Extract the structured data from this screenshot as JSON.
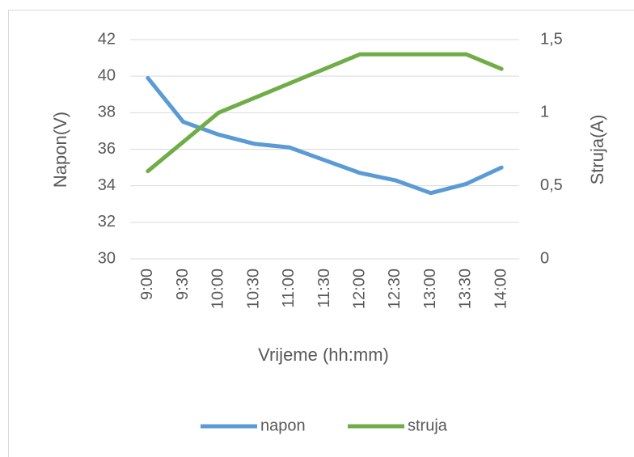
{
  "chart_data": {
    "type": "line",
    "x_label": "Vrijeme (hh:mm)",
    "y_label": "Napon(V)",
    "y2_label": "Struja(A)",
    "categories": [
      "9:00",
      "9:30",
      "10:00",
      "10:30",
      "11:00",
      "11:30",
      "12:00",
      "12:30",
      "13:00",
      "13:30",
      "14:00"
    ],
    "series": [
      {
        "name": "napon",
        "color": "#5b9bd5",
        "values": [
          39.9,
          37.5,
          36.8,
          36.3,
          36.1,
          35.4,
          34.7,
          34.3,
          33.6,
          34.1,
          35.0
        ]
      },
      {
        "name": "struja",
        "color": "#70ad47",
        "axis": "y2",
        "values": [
          0.6,
          0.8,
          1.0,
          1.1,
          1.2,
          1.3,
          1.4,
          1.4,
          1.4,
          1.4,
          1.3
        ]
      }
    ],
    "ylim": [
      30,
      42
    ],
    "yticks": [
      30,
      32,
      34,
      36,
      38,
      40,
      42
    ],
    "y2lim": [
      0,
      1.5
    ],
    "y2ticks": [
      0,
      {
        "value": 0.5,
        "label": "0,5"
      },
      1,
      {
        "value": 1.5,
        "label": "1,5"
      }
    ],
    "grid": true,
    "legend": "bottom"
  }
}
